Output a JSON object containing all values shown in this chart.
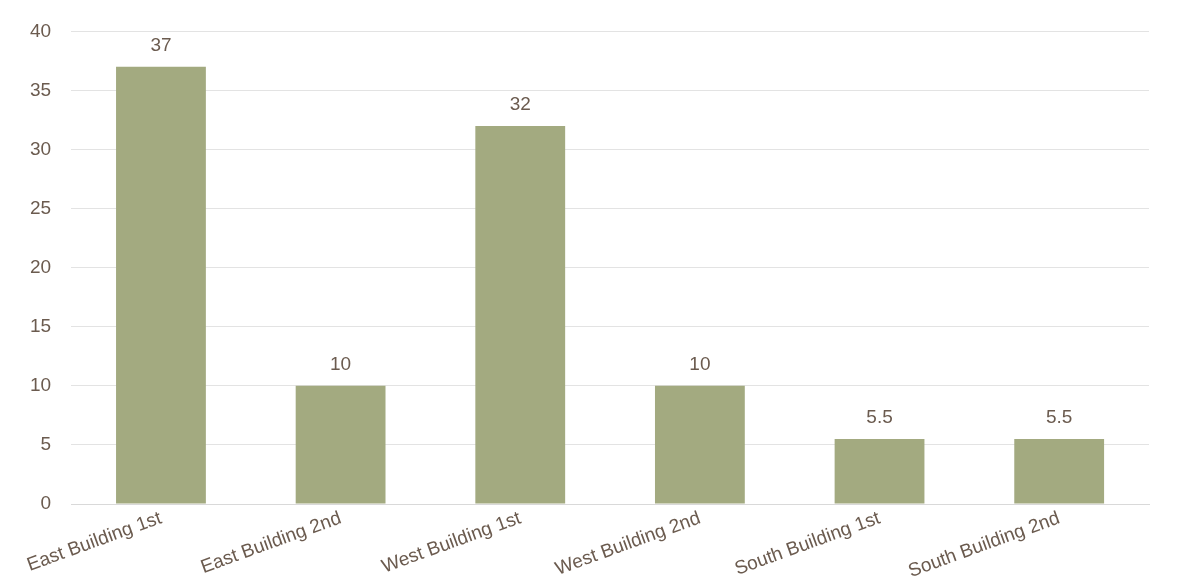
{
  "chart_data": {
    "type": "bar",
    "categories": [
      "East Building 1st",
      "East Building 2nd",
      "West Building 1st",
      "West Building 2nd",
      "South Building 1st",
      "South Building 2nd"
    ],
    "values": [
      37,
      10,
      32,
      10,
      5.5,
      5.5
    ],
    "color": "#a3aa80",
    "ylim": [
      0,
      40
    ],
    "yticks": [
      0,
      5,
      10,
      15,
      20,
      25,
      30,
      35,
      40
    ],
    "grid": "y",
    "data_labels": true,
    "legend": false
  }
}
